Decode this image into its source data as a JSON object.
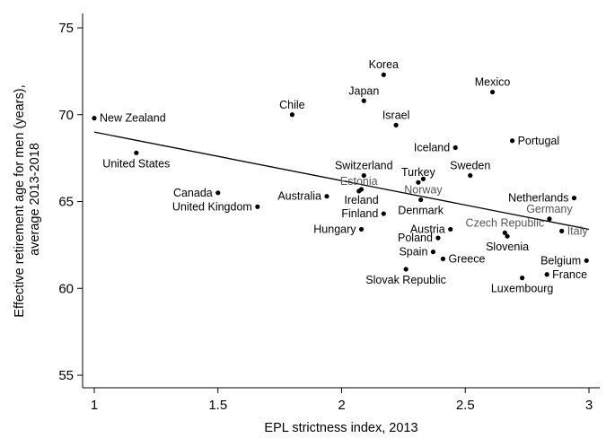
{
  "chart_data": {
    "type": "scatter",
    "xlabel": "EPL strictness index, 2013",
    "ylabel_lines": [
      "Effective retirement age for men (years),",
      "average 2013-2018"
    ],
    "xlim": [
      1,
      3
    ],
    "ylim": [
      55,
      75
    ],
    "xticks": [
      "1",
      "1.5",
      "2",
      "2.5",
      "3"
    ],
    "yticks": [
      "55",
      "60",
      "65",
      "70",
      "75"
    ],
    "grid": false,
    "legend": "none",
    "trendline": {
      "x": [
        1,
        3
      ],
      "y": [
        69.0,
        63.4
      ]
    },
    "colors": {
      "point": "#000000",
      "label": "#000000",
      "label_muted": "#555555",
      "line": "#000000"
    },
    "points": [
      {
        "name": "New Zealand",
        "x": 1.0,
        "y": 69.8,
        "label_pos": "right"
      },
      {
        "name": "United States",
        "x": 1.17,
        "y": 67.8,
        "label_pos": "below"
      },
      {
        "name": "Canada",
        "x": 1.5,
        "y": 65.5,
        "label_pos": "left"
      },
      {
        "name": "United Kingdom",
        "x": 1.66,
        "y": 64.7,
        "label_pos": "left"
      },
      {
        "name": "Chile",
        "x": 1.8,
        "y": 70.0,
        "label_pos": "above"
      },
      {
        "name": "Australia",
        "x": 1.94,
        "y": 65.3,
        "label_pos": "left"
      },
      {
        "name": "Hungary",
        "x": 2.08,
        "y": 63.4,
        "label_pos": "left"
      },
      {
        "name": "Estonia",
        "x": 2.07,
        "y": 65.6,
        "label_pos": "above",
        "muted": true
      },
      {
        "name": "Ireland",
        "x": 2.08,
        "y": 65.7,
        "label_pos": "below"
      },
      {
        "name": "Switzerland",
        "x": 2.09,
        "y": 66.5,
        "label_pos": "above"
      },
      {
        "name": "Japan",
        "x": 2.09,
        "y": 70.8,
        "label_pos": "above"
      },
      {
        "name": "Finland",
        "x": 2.17,
        "y": 64.3,
        "label_pos": "left"
      },
      {
        "name": "Korea",
        "x": 2.17,
        "y": 72.3,
        "label_pos": "above"
      },
      {
        "name": "Israel",
        "x": 2.22,
        "y": 69.4,
        "label_pos": "above"
      },
      {
        "name": "Slovak Republic",
        "x": 2.26,
        "y": 61.1,
        "label_pos": "below"
      },
      {
        "name": "Turkey",
        "x": 2.31,
        "y": 66.1,
        "label_pos": "above"
      },
      {
        "name": "Norway",
        "x": 2.33,
        "y": 66.3,
        "label_pos": "below",
        "muted": true
      },
      {
        "name": "Denmark",
        "x": 2.32,
        "y": 65.1,
        "label_pos": "below"
      },
      {
        "name": "Spain",
        "x": 2.37,
        "y": 62.1,
        "label_pos": "left"
      },
      {
        "name": "Poland",
        "x": 2.39,
        "y": 62.9,
        "label_pos": "left"
      },
      {
        "name": "Greece",
        "x": 2.41,
        "y": 61.7,
        "label_pos": "right"
      },
      {
        "name": "Austria",
        "x": 2.44,
        "y": 63.4,
        "label_pos": "left"
      },
      {
        "name": "Iceland",
        "x": 2.46,
        "y": 68.1,
        "label_pos": "left"
      },
      {
        "name": "Sweden",
        "x": 2.52,
        "y": 66.5,
        "label_pos": "above"
      },
      {
        "name": "Mexico",
        "x": 2.61,
        "y": 71.3,
        "label_pos": "above"
      },
      {
        "name": "Czech Republic",
        "x": 2.66,
        "y": 63.2,
        "label_pos": "above",
        "muted": true
      },
      {
        "name": "Slovenia",
        "x": 2.67,
        "y": 63.0,
        "label_pos": "below"
      },
      {
        "name": "Portugal",
        "x": 2.69,
        "y": 68.5,
        "label_pos": "right"
      },
      {
        "name": "Luxembourg",
        "x": 2.73,
        "y": 60.6,
        "label_pos": "below"
      },
      {
        "name": "France",
        "x": 2.83,
        "y": 60.8,
        "label_pos": "right"
      },
      {
        "name": "Germany",
        "x": 2.84,
        "y": 64.0,
        "label_pos": "above",
        "muted": true
      },
      {
        "name": "Italy",
        "x": 2.89,
        "y": 63.3,
        "label_pos": "right",
        "muted": true
      },
      {
        "name": "Netherlands",
        "x": 2.94,
        "y": 65.2,
        "label_pos": "left"
      },
      {
        "name": "Belgium",
        "x": 2.99,
        "y": 61.6,
        "label_pos": "left"
      }
    ]
  }
}
